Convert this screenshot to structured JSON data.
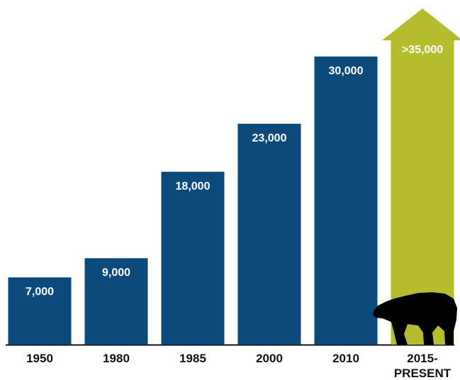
{
  "chart_data": {
    "type": "bar",
    "categories": [
      "1950",
      "1980",
      "1985",
      "2000",
      "2010",
      "2015-\nPRESENT"
    ],
    "values": [
      7000,
      9000,
      18000,
      23000,
      30000,
      35000
    ],
    "value_labels": [
      "7,000",
      "9,000",
      "18,000",
      "23,000",
      "30,000",
      ">35,000"
    ],
    "colors": [
      "#0b4a7a",
      "#0b4a7a",
      "#0b4a7a",
      "#0b4a7a",
      "#0b4a7a",
      "#b5bd2f"
    ],
    "arrow_last": true,
    "ylim": [
      0,
      35000
    ]
  }
}
